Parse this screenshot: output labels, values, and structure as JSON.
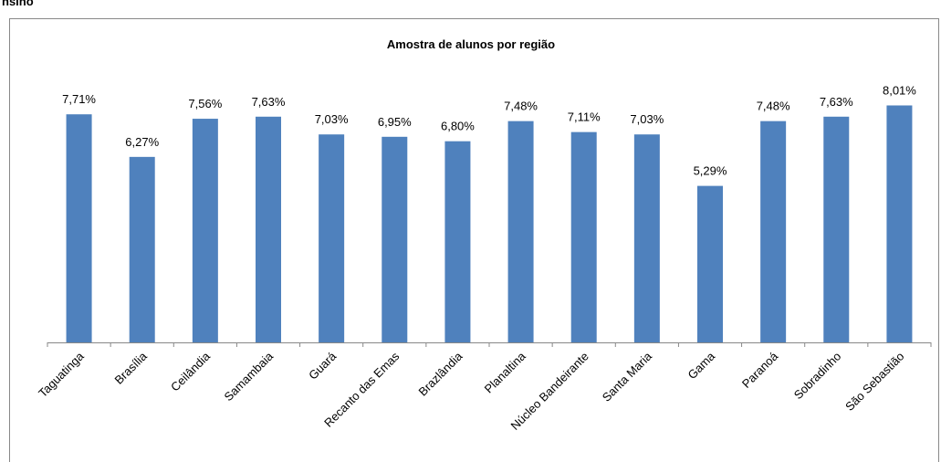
{
  "heading": "nsino",
  "chart_data": {
    "type": "bar",
    "title": "Amostra de alunos  por região",
    "categories": [
      "Taguatinga",
      "Brasília",
      "Ceilândia",
      "Samambaia",
      "Guará",
      "Recanto das Emas",
      "Brazlândia",
      "Planaltina",
      "Núcleo Bandeirante",
      "Santa Maria",
      "Gama",
      "Paranoá",
      "Sobradinho",
      "São Sebastião"
    ],
    "values": [
      7.71,
      6.27,
      7.56,
      7.63,
      7.03,
      6.95,
      6.8,
      7.48,
      7.11,
      7.03,
      5.29,
      7.48,
      7.63,
      8.01
    ],
    "value_labels": [
      "7,71%",
      "6,27%",
      "7,56%",
      "7,63%",
      "7,03%",
      "6,95%",
      "6,80%",
      "7,48%",
      "7,11%",
      "7,03%",
      "5,29%",
      "7,48%",
      "7,63%",
      "8,01%"
    ],
    "color": "#4f81bd"
  }
}
